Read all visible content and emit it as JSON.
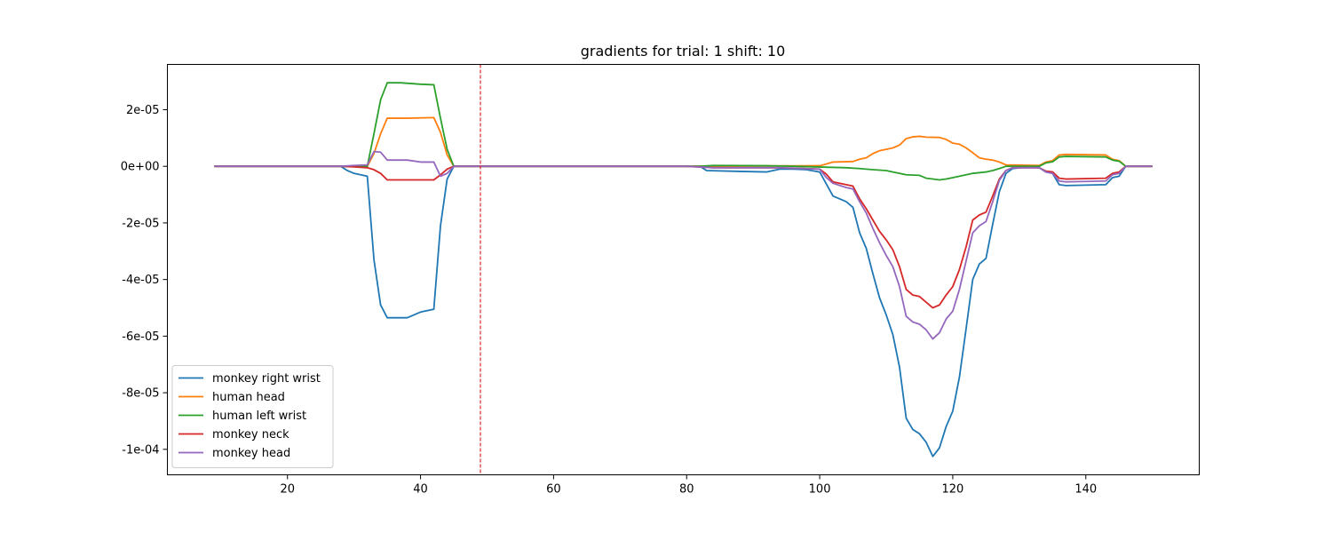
{
  "chart_data": {
    "type": "line",
    "title": "gradients for trial: 1 shift: 10",
    "xlabel": "",
    "ylabel": "",
    "xlim": [
      1.95,
      157.05
    ],
    "ylim": [
      -0.000109,
      3.6e-05
    ],
    "x_ticks": [
      20,
      40,
      60,
      80,
      100,
      120,
      140
    ],
    "x_tick_labels": [
      "20",
      "40",
      "60",
      "80",
      "100",
      "120",
      "140"
    ],
    "y_ticks": [
      2e-05,
      0,
      -2e-05,
      -4e-05,
      -6e-05,
      -8e-05,
      -0.0001
    ],
    "y_tick_labels": [
      "2e-05",
      "0e+00",
      "-2e-05",
      "-4e-05",
      "-6e-05",
      "-8e-05",
      "-1e-04"
    ],
    "grid": false,
    "legend_position": "lower-left",
    "vline": {
      "x": 49,
      "color": "#d62728",
      "style": "dashed"
    },
    "series": [
      {
        "name": "monkey right wrist",
        "color": "#1f77b4",
        "points": [
          [
            9,
            0
          ],
          [
            28,
            0
          ],
          [
            29,
            -1.5e-06
          ],
          [
            30,
            -2.5e-06
          ],
          [
            31,
            -3e-06
          ],
          [
            32,
            -3.5e-06
          ],
          [
            33,
            -3.3e-05
          ],
          [
            34,
            -4.9e-05
          ],
          [
            35,
            -5.35e-05
          ],
          [
            38,
            -5.35e-05
          ],
          [
            40,
            -5.15e-05
          ],
          [
            42,
            -5.05e-05
          ],
          [
            43,
            -2.1e-05
          ],
          [
            44,
            -4.5e-06
          ],
          [
            45,
            0
          ],
          [
            82,
            0
          ],
          [
            83,
            -1.5e-06
          ],
          [
            88,
            -1.8e-06
          ],
          [
            92,
            -2e-06
          ],
          [
            94,
            -1e-06
          ],
          [
            96,
            -1e-06
          ],
          [
            98,
            -1.2e-06
          ],
          [
            100,
            -2e-06
          ],
          [
            102,
            -1.05e-05
          ],
          [
            104,
            -1.25e-05
          ],
          [
            105,
            -1.45e-05
          ],
          [
            106,
            -2.35e-05
          ],
          [
            107,
            -2.9e-05
          ],
          [
            108,
            -3.8e-05
          ],
          [
            109,
            -4.65e-05
          ],
          [
            110,
            -5.25e-05
          ],
          [
            111,
            -5.95e-05
          ],
          [
            112,
            -7.1e-05
          ],
          [
            113,
            -8.9e-05
          ],
          [
            114,
            -9.3e-05
          ],
          [
            115,
            -9.45e-05
          ],
          [
            116,
            -9.75e-05
          ],
          [
            117,
            -0.0001025
          ],
          [
            118,
            -9.95e-05
          ],
          [
            119,
            -9.2e-05
          ],
          [
            120,
            -8.65e-05
          ],
          [
            121,
            -7.45e-05
          ],
          [
            122,
            -5.75e-05
          ],
          [
            123,
            -4e-05
          ],
          [
            124,
            -3.45e-05
          ],
          [
            125,
            -3.25e-05
          ],
          [
            126,
            -2.05e-05
          ],
          [
            127,
            -9e-06
          ],
          [
            128,
            -2.5e-06
          ],
          [
            129,
            -8e-07
          ],
          [
            131,
            -3e-07
          ],
          [
            133,
            -5e-07
          ],
          [
            134,
            -2e-06
          ],
          [
            135,
            -2.5e-06
          ],
          [
            136,
            -6.5e-06
          ],
          [
            137,
            -6.8e-06
          ],
          [
            143,
            -6.5e-06
          ],
          [
            144,
            -4e-06
          ],
          [
            145,
            -3.5e-06
          ],
          [
            146,
            0
          ],
          [
            150,
            0
          ]
        ]
      },
      {
        "name": "human head",
        "color": "#ff7f0e",
        "points": [
          [
            9,
            0
          ],
          [
            32,
            0
          ],
          [
            33,
            4.5e-06
          ],
          [
            34,
            1.15e-05
          ],
          [
            35,
            1.7e-05
          ],
          [
            38,
            1.7e-05
          ],
          [
            42,
            1.72e-05
          ],
          [
            43,
            1.2e-05
          ],
          [
            44,
            4e-06
          ],
          [
            45,
            0
          ],
          [
            80,
            0
          ],
          [
            100,
            2e-07
          ],
          [
            101,
            8e-07
          ],
          [
            102,
            1.5e-06
          ],
          [
            105,
            1.7e-06
          ],
          [
            106,
            2.5e-06
          ],
          [
            107,
            3e-06
          ],
          [
            108,
            4.5e-06
          ],
          [
            109,
            5.5e-06
          ],
          [
            110,
            6e-06
          ],
          [
            111,
            6.5e-06
          ],
          [
            112,
            7.5e-06
          ],
          [
            113,
            9.8e-06
          ],
          [
            114,
            1.04e-05
          ],
          [
            115,
            1.06e-05
          ],
          [
            116,
            1.03e-05
          ],
          [
            118,
            1.02e-05
          ],
          [
            119,
            9.5e-06
          ],
          [
            120,
            8.2e-06
          ],
          [
            121,
            7.8e-06
          ],
          [
            122,
            6.5e-06
          ],
          [
            123,
            4.8e-06
          ],
          [
            124,
            3e-06
          ],
          [
            125,
            2.5e-06
          ],
          [
            126,
            2.2e-06
          ],
          [
            127,
            1.5e-06
          ],
          [
            128,
            5e-07
          ],
          [
            133,
            3e-07
          ],
          [
            134,
            1.5e-06
          ],
          [
            135,
            2e-06
          ],
          [
            136,
            4e-06
          ],
          [
            137,
            4.2e-06
          ],
          [
            143,
            4e-06
          ],
          [
            144,
            2.5e-06
          ],
          [
            145,
            2e-06
          ],
          [
            146,
            0
          ],
          [
            150,
            0
          ]
        ]
      },
      {
        "name": "human left wrist",
        "color": "#2ca02c",
        "points": [
          [
            9,
            0
          ],
          [
            32,
            0
          ],
          [
            33,
            1.15e-05
          ],
          [
            34,
            2.35e-05
          ],
          [
            35,
            2.95e-05
          ],
          [
            37,
            2.95e-05
          ],
          [
            40,
            2.9e-05
          ],
          [
            42,
            2.88e-05
          ],
          [
            43,
            1.7e-05
          ],
          [
            44,
            6e-06
          ],
          [
            45,
            0
          ],
          [
            82,
            0
          ],
          [
            84,
            3e-07
          ],
          [
            92,
            2e-07
          ],
          [
            96,
            0
          ],
          [
            104,
            -5e-07
          ],
          [
            106,
            -8e-07
          ],
          [
            108,
            -1.2e-06
          ],
          [
            110,
            -1.5e-06
          ],
          [
            111,
            -2e-06
          ],
          [
            112,
            -2.5e-06
          ],
          [
            113,
            -3e-06
          ],
          [
            115,
            -3.2e-06
          ],
          [
            116,
            -4.2e-06
          ],
          [
            117,
            -4.5e-06
          ],
          [
            118,
            -4.8e-06
          ],
          [
            119,
            -4.5e-06
          ],
          [
            120,
            -4e-06
          ],
          [
            121,
            -3.5e-06
          ],
          [
            122,
            -3e-06
          ],
          [
            123,
            -2.5e-06
          ],
          [
            125,
            -2e-06
          ],
          [
            126,
            -1.5e-06
          ],
          [
            127,
            -8e-07
          ],
          [
            128,
            0
          ],
          [
            133,
            0
          ],
          [
            134,
            1.2e-06
          ],
          [
            135,
            1.6e-06
          ],
          [
            136,
            3.3e-06
          ],
          [
            137,
            3.5e-06
          ],
          [
            143,
            3.3e-06
          ],
          [
            144,
            2.2e-06
          ],
          [
            145,
            1.8e-06
          ],
          [
            146,
            0
          ],
          [
            150,
            0
          ]
        ]
      },
      {
        "name": "monkey neck",
        "color": "#d62728",
        "points": [
          [
            9,
            0
          ],
          [
            28,
            0
          ],
          [
            30,
            -2e-07
          ],
          [
            32,
            -5e-07
          ],
          [
            33,
            -1.2e-06
          ],
          [
            34,
            -2.5e-06
          ],
          [
            35,
            -4.8e-06
          ],
          [
            42,
            -4.8e-06
          ],
          [
            43,
            -3e-06
          ],
          [
            44,
            -1e-06
          ],
          [
            45,
            0
          ],
          [
            80,
            0
          ],
          [
            84,
            -5e-07
          ],
          [
            94,
            -5e-07
          ],
          [
            100,
            -1e-06
          ],
          [
            101,
            -2.8e-06
          ],
          [
            102,
            -5.5e-06
          ],
          [
            104,
            -6.5e-06
          ],
          [
            105,
            -7e-06
          ],
          [
            106,
            -1.15e-05
          ],
          [
            107,
            -1.5e-05
          ],
          [
            108,
            -1.9e-05
          ],
          [
            109,
            -2.3e-05
          ],
          [
            110,
            -2.6e-05
          ],
          [
            111,
            -2.95e-05
          ],
          [
            112,
            -3.55e-05
          ],
          [
            113,
            -4.35e-05
          ],
          [
            114,
            -4.55e-05
          ],
          [
            115,
            -4.6e-05
          ],
          [
            116,
            -4.8e-05
          ],
          [
            117,
            -5e-05
          ],
          [
            118,
            -4.9e-05
          ],
          [
            119,
            -4.55e-05
          ],
          [
            120,
            -4.25e-05
          ],
          [
            121,
            -3.65e-05
          ],
          [
            122,
            -2.85e-05
          ],
          [
            123,
            -1.9e-05
          ],
          [
            124,
            -1.72e-05
          ],
          [
            125,
            -1.62e-05
          ],
          [
            126,
            -1.05e-05
          ],
          [
            127,
            -4.5e-06
          ],
          [
            128,
            -1.5e-06
          ],
          [
            129,
            -5e-07
          ],
          [
            133,
            -5e-07
          ],
          [
            134,
            -1.7e-06
          ],
          [
            135,
            -2e-06
          ],
          [
            136,
            -4.2e-06
          ],
          [
            137,
            -4.5e-06
          ],
          [
            143,
            -4.2e-06
          ],
          [
            144,
            -2.5e-06
          ],
          [
            145,
            -2e-06
          ],
          [
            146,
            0
          ],
          [
            150,
            0
          ]
        ]
      },
      {
        "name": "monkey head",
        "color": "#9467bd",
        "points": [
          [
            9,
            0
          ],
          [
            28,
            0
          ],
          [
            30,
            3e-07
          ],
          [
            32,
            5e-07
          ],
          [
            33,
            5.2e-06
          ],
          [
            34,
            5e-06
          ],
          [
            35,
            2.2e-06
          ],
          [
            38,
            2.2e-06
          ],
          [
            40,
            1.5e-06
          ],
          [
            42,
            1.5e-06
          ],
          [
            43,
            -3.5e-06
          ],
          [
            44,
            -2.5e-06
          ],
          [
            45,
            0
          ],
          [
            80,
            0
          ],
          [
            84,
            -5e-07
          ],
          [
            94,
            -5e-07
          ],
          [
            100,
            -1e-06
          ],
          [
            101,
            -4e-06
          ],
          [
            102,
            -6e-06
          ],
          [
            104,
            -7.5e-06
          ],
          [
            105,
            -8e-06
          ],
          [
            106,
            -1.25e-05
          ],
          [
            107,
            -1.65e-05
          ],
          [
            108,
            -2.2e-05
          ],
          [
            109,
            -2.7e-05
          ],
          [
            110,
            -3.15e-05
          ],
          [
            111,
            -3.55e-05
          ],
          [
            112,
            -4.25e-05
          ],
          [
            113,
            -5.3e-05
          ],
          [
            114,
            -5.5e-05
          ],
          [
            115,
            -5.58e-05
          ],
          [
            116,
            -5.78e-05
          ],
          [
            117,
            -6.1e-05
          ],
          [
            118,
            -5.88e-05
          ],
          [
            119,
            -5.4e-05
          ],
          [
            120,
            -5.12e-05
          ],
          [
            121,
            -4.35e-05
          ],
          [
            122,
            -3.35e-05
          ],
          [
            123,
            -2.35e-05
          ],
          [
            124,
            -2.1e-05
          ],
          [
            125,
            -1.95e-05
          ],
          [
            126,
            -1.25e-05
          ],
          [
            127,
            -5e-06
          ],
          [
            128,
            -1.5e-06
          ],
          [
            129,
            -5e-07
          ],
          [
            133,
            -5e-07
          ],
          [
            134,
            -2e-06
          ],
          [
            135,
            -2.5e-06
          ],
          [
            136,
            -5.2e-06
          ],
          [
            137,
            -5.5e-06
          ],
          [
            143,
            -5.2e-06
          ],
          [
            144,
            -3e-06
          ],
          [
            145,
            -2.5e-06
          ],
          [
            146,
            0
          ],
          [
            150,
            0
          ]
        ]
      }
    ]
  }
}
